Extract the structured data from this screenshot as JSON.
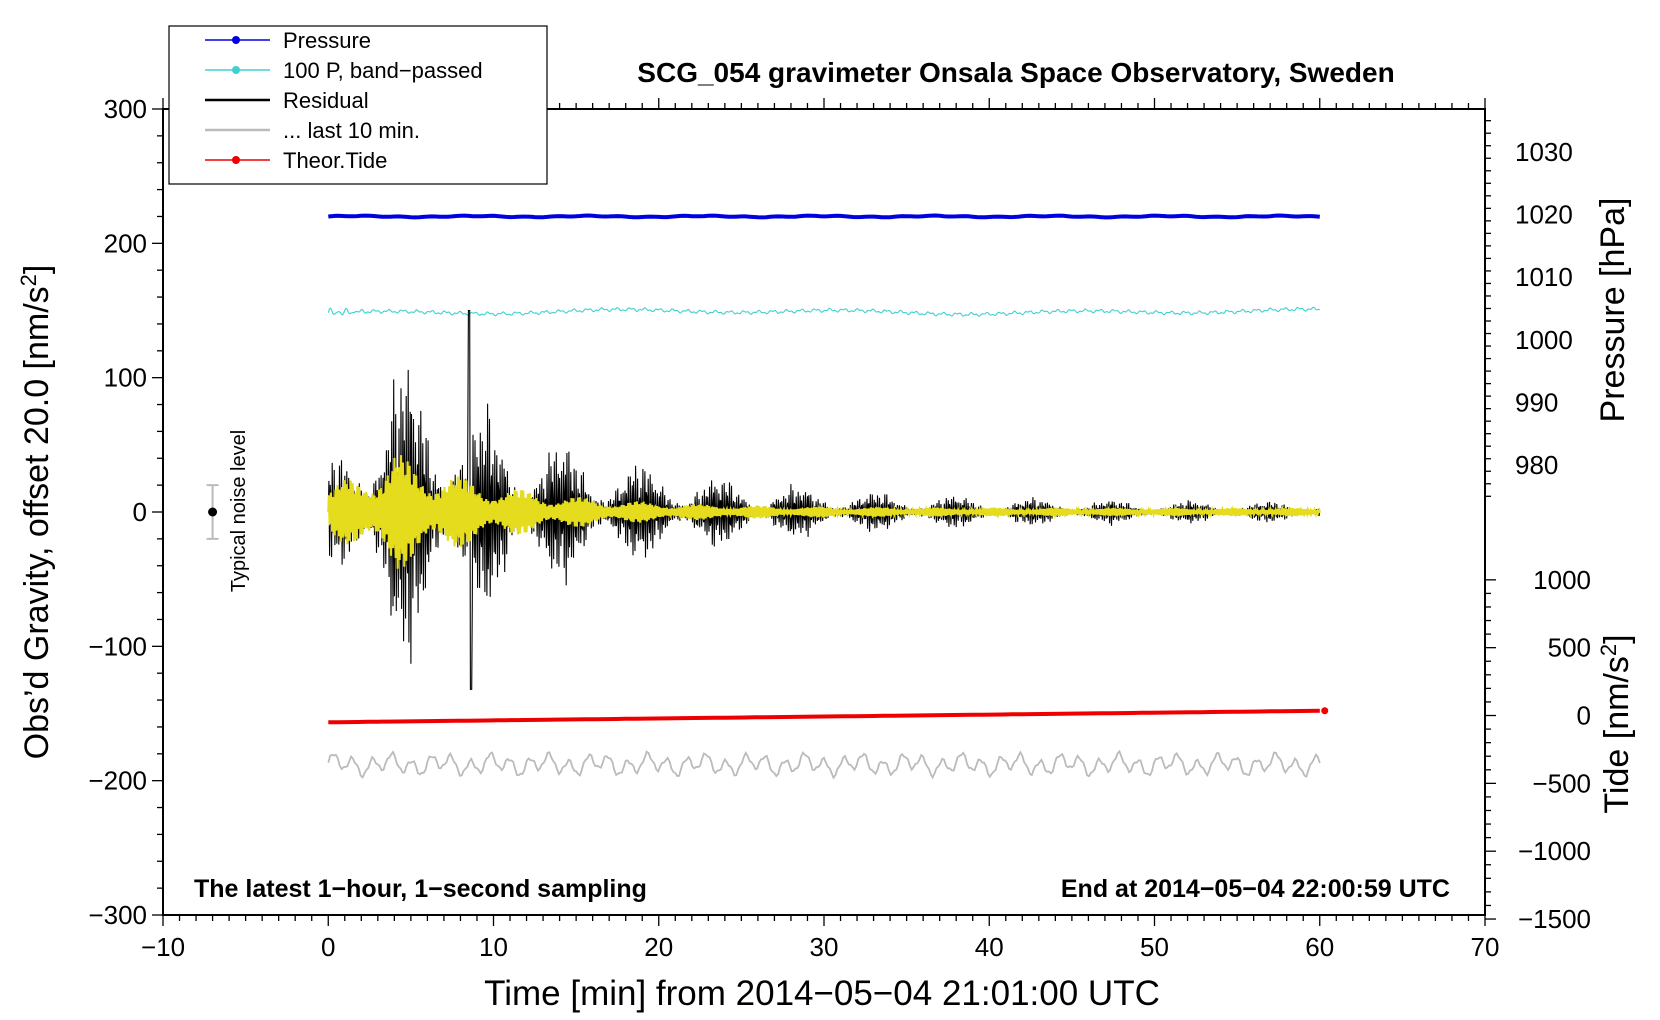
{
  "chart_data": {
    "type": "line",
    "title": "SCG_054 gravimeter Onsala Space Observatory, Sweden",
    "xlabel": "Time [min] from 2014−05−04 21:01:00 UTC",
    "ylabel_left": "Obs’d Gravity, offset 20.0 [nm/s²]",
    "ylabel_right_top": "Pressure [hPa]",
    "ylabel_right_bottom": "Tide [nm/s²]",
    "xlim": [
      -10,
      70
    ],
    "ylim_left": [
      -300,
      300
    ],
    "pressure_axis_range": [
      980,
      1030
    ],
    "tide_axis_range": [
      -1500,
      1000
    ],
    "x_ticks": [
      "−10",
      "0",
      "10",
      "20",
      "30",
      "40",
      "50",
      "60",
      "70"
    ],
    "y_ticks_left": [
      "−300",
      "−200",
      "−100",
      "0",
      "100",
      "200",
      "300"
    ],
    "y_ticks_pressure": [
      "980",
      "990",
      "1000",
      "1010",
      "1020",
      "1030"
    ],
    "y_ticks_tide": [
      "−1500",
      "−1000",
      "−500",
      "0",
      "500",
      "1000"
    ],
    "footer_left": "The latest 1−hour, 1−second sampling",
    "footer_right": "End at 2014−05−04 22:00:59 UTC",
    "noise_label": "Typical noise level",
    "noise_level": {
      "x": -7,
      "center": 0,
      "half_range": 20
    },
    "legend": [
      {
        "label": "Pressure",
        "color": "#0000e0",
        "marker": true
      },
      {
        "label": "100 P, band−passed",
        "color": "#40d0d0",
        "marker": true
      },
      {
        "label": "Residual",
        "color": "#000000",
        "marker": false
      },
      {
        "label": "... last 10 min.",
        "color": "#bbbbbb",
        "marker": false
      },
      {
        "label": "Theor.Tide",
        "color": "#ee0000",
        "marker": true
      }
    ],
    "series": [
      {
        "name": "Pressure",
        "color": "#0000e0",
        "note": "flat, about 1017.7 hPa",
        "x_range": [
          0,
          60
        ],
        "y_left_equiv": 220
      },
      {
        "name": "100 P, band−passed",
        "color": "#40d0d0",
        "note": "near-constant trace with small wiggles",
        "x_range": [
          0,
          60
        ],
        "y_left_equiv": 149
      },
      {
        "name": "Residual",
        "color": "#000000",
        "note": "decaying oscillation after earthquake arrival",
        "x_range": [
          0,
          60
        ],
        "peak_max": 150,
        "peak_min": -132,
        "peak_time": 8.6
      },
      {
        "name": "Residual, filtered",
        "color": "#e6dc1e",
        "note": "yellow low-pass overlay",
        "x_range": [
          0,
          60
        ],
        "peak_amplitude": 42
      },
      {
        "name": "Theor.Tide",
        "color": "#ee0000",
        "x": [
          0,
          60
        ],
        "y_tide_nm_s2": [
          -50,
          35
        ]
      },
      {
        "name": "... last 10 min.",
        "color": "#bbbbbb",
        "note": "oscillating trace around -188 on left axis",
        "x_range": [
          0,
          60
        ],
        "y_left_equiv": -188
      }
    ]
  }
}
